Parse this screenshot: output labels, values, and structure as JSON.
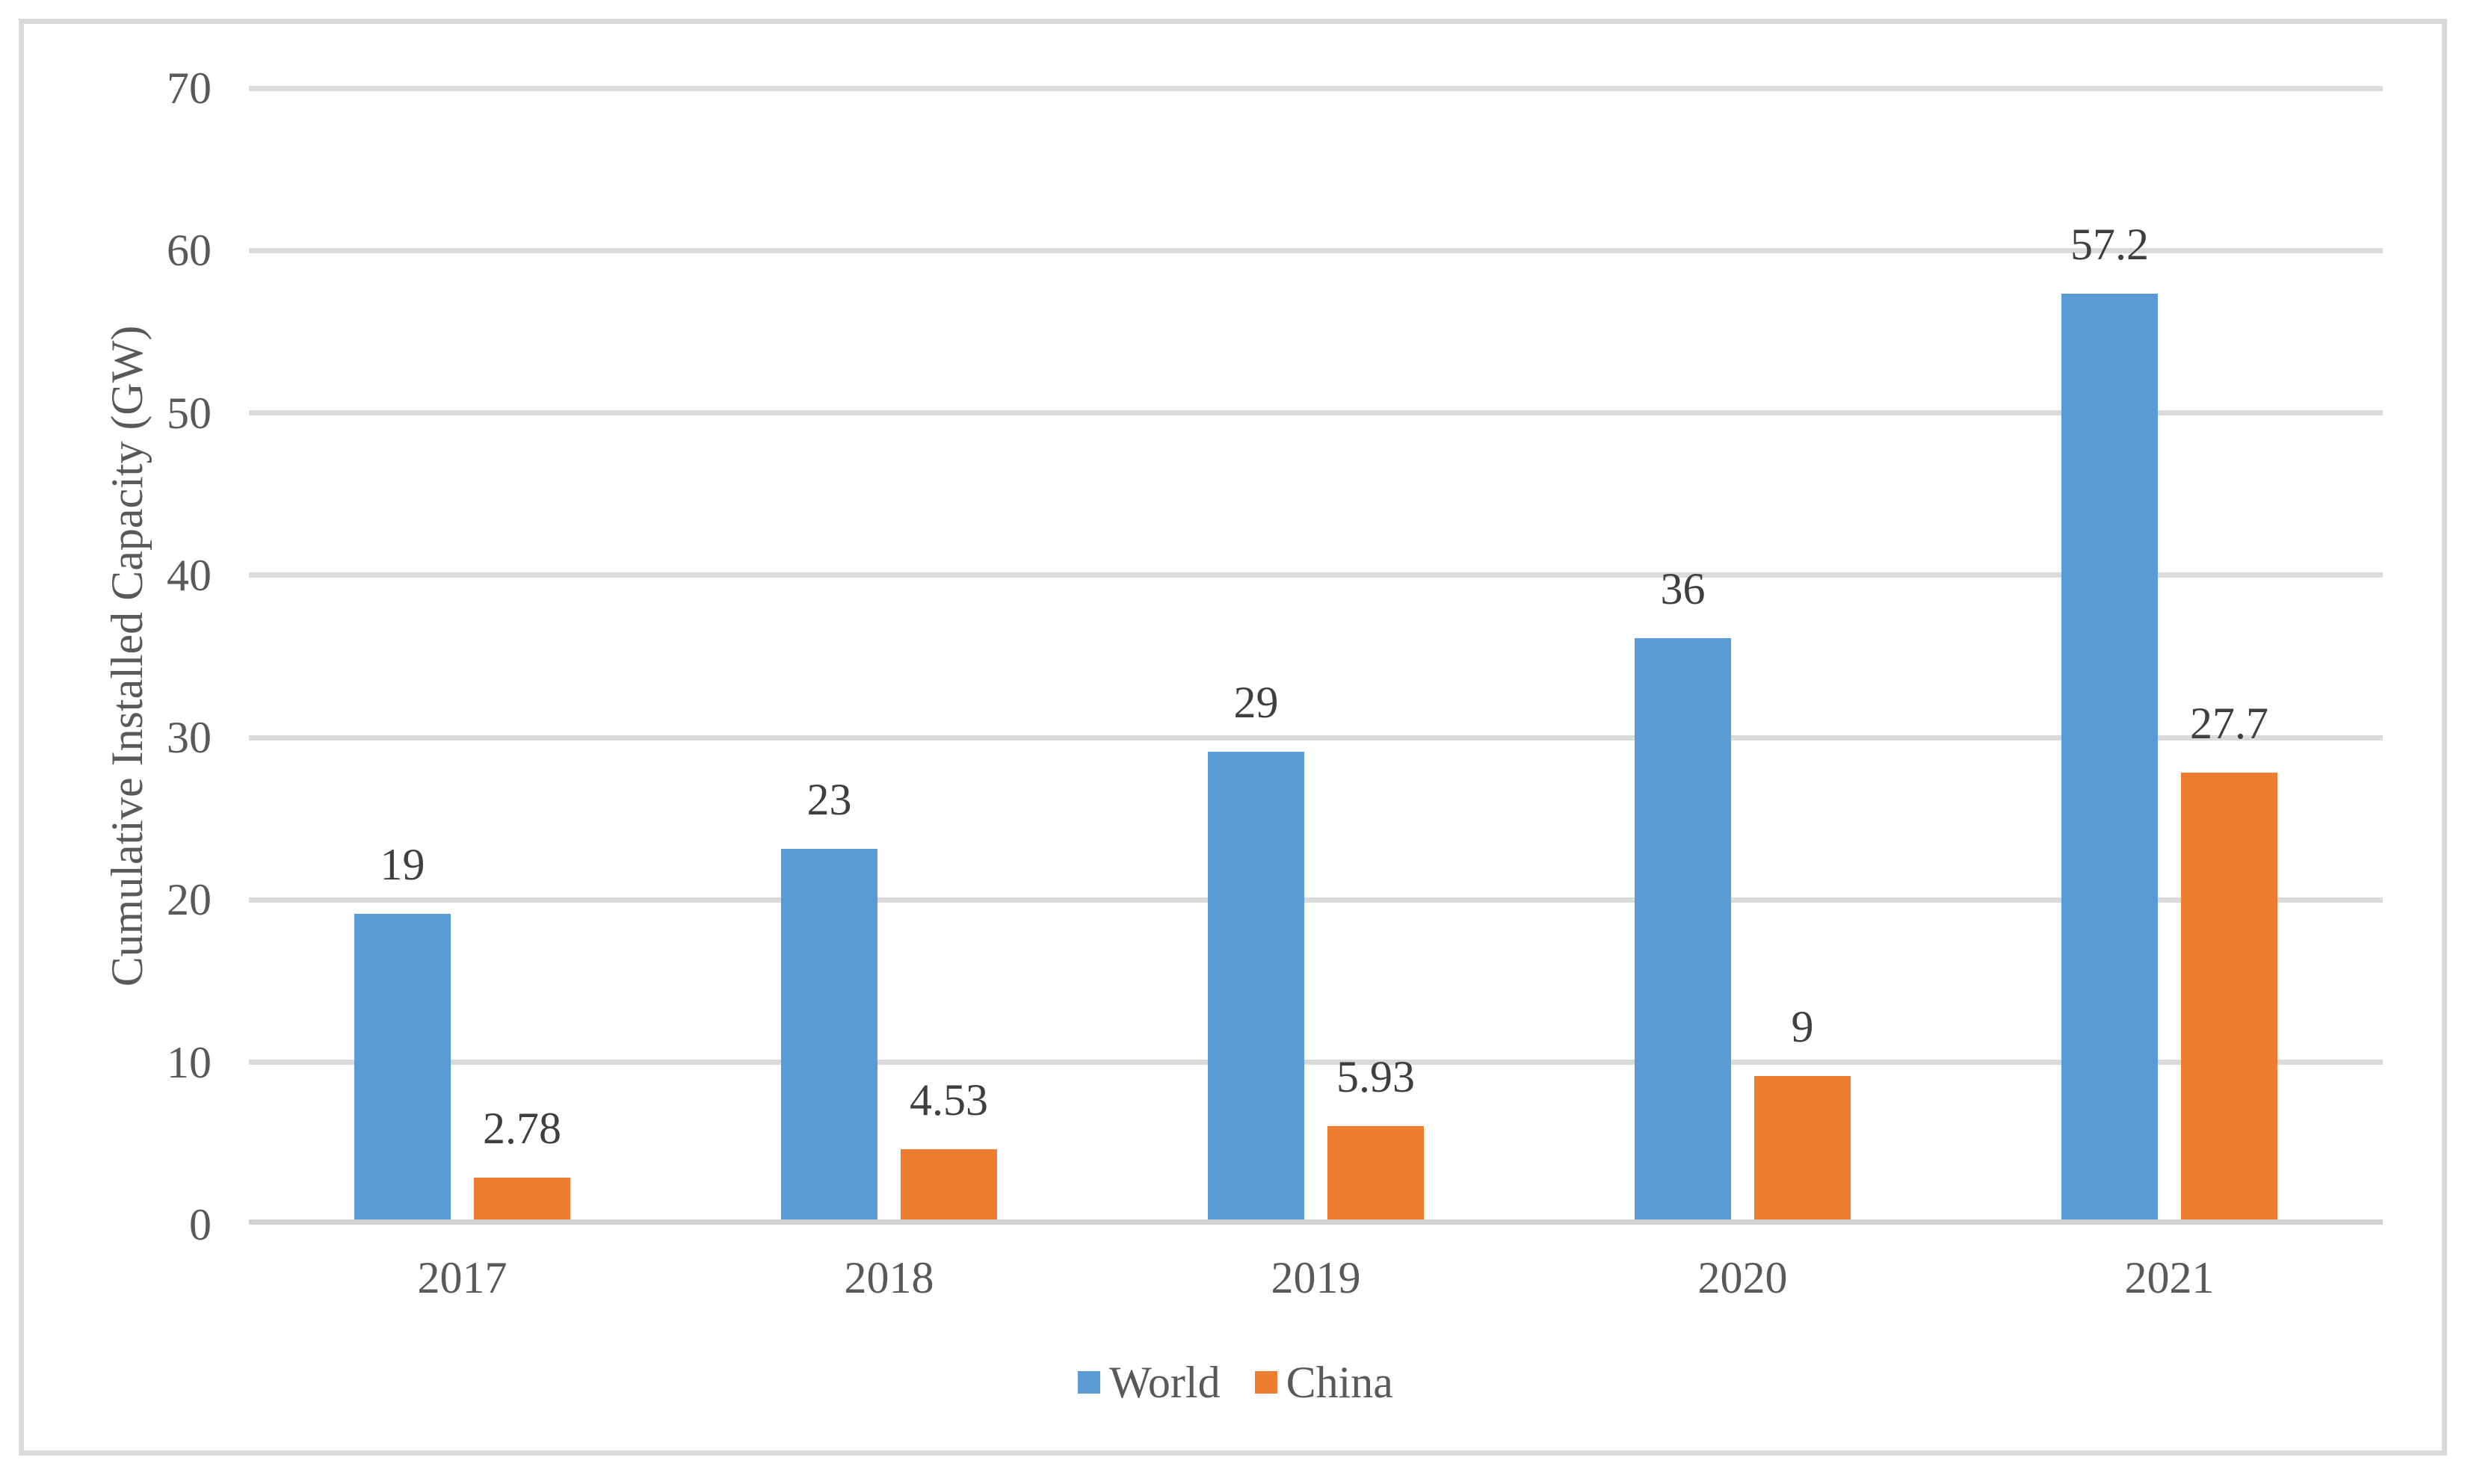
{
  "chart_data": {
    "type": "bar",
    "title": "",
    "categories": [
      "2017",
      "2018",
      "2019",
      "2020",
      "2021"
    ],
    "series": [
      {
        "name": "World",
        "color": "#5B9BD5",
        "values": [
          19,
          23,
          29,
          36,
          57.2
        ],
        "labels": [
          "19",
          "23",
          "29",
          "36",
          "57.2"
        ]
      },
      {
        "name": "China",
        "color": "#ED7D31",
        "values": [
          2.78,
          4.53,
          5.93,
          9,
          27.7
        ],
        "labels": [
          "2.78",
          "4.53",
          "5.93",
          "9",
          "27.7"
        ]
      }
    ],
    "xlabel": "",
    "ylabel": "Cumulative Installed Capacity (GW)",
    "ylim": [
      0,
      70
    ],
    "ytick_step": 10,
    "yticks": [
      "0",
      "10",
      "20",
      "30",
      "40",
      "50",
      "60",
      "70"
    ],
    "grid": true,
    "legend_position": "bottom",
    "legend_entries": [
      "World",
      "China"
    ],
    "colors": {
      "world_bar": "#5B9BD5",
      "china_bar": "#ED7D31",
      "gridline": "#DADADA",
      "axis_line": "#D2D2D2",
      "chart_border": "#D9D9D9",
      "tick_label_text": "#595959",
      "data_label_text": "#3F3F3F",
      "background": "#FFFFFF"
    }
  }
}
